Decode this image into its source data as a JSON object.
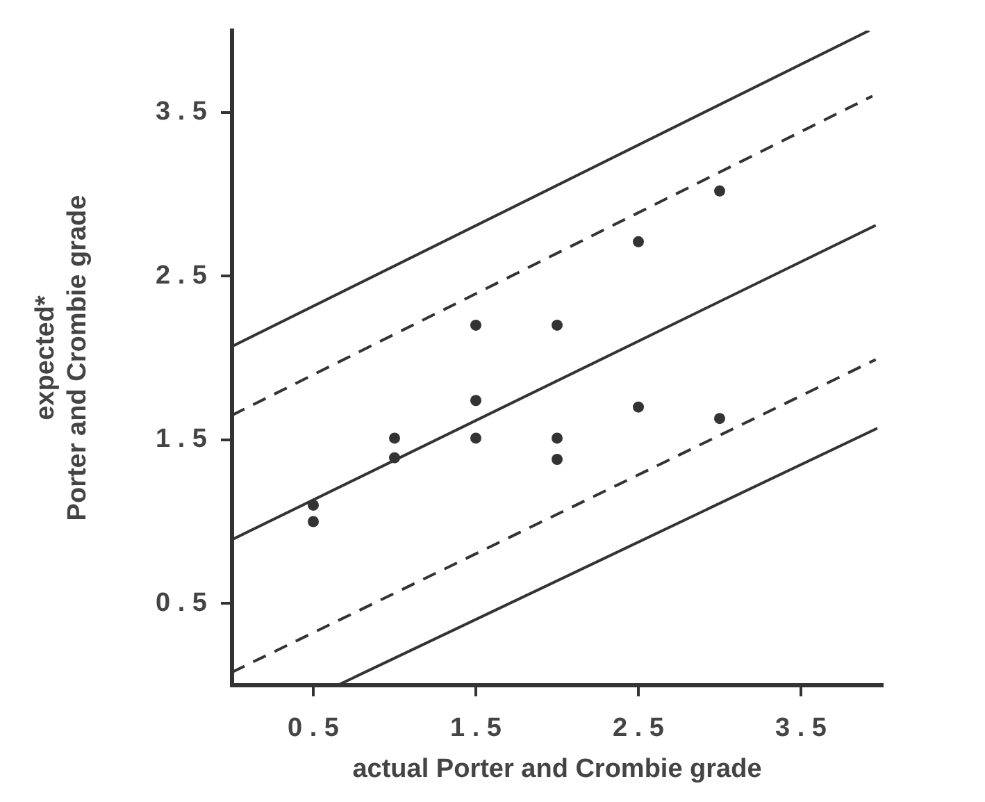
{
  "chart_data": {
    "type": "scatter",
    "xlabel": "actual Porter and Crombie grade",
    "ylabel": "expected*\nPorter and Crombie grade",
    "xlim": [
      0,
      4
    ],
    "xticks": [
      0.5,
      1.5,
      2.5,
      3.5
    ],
    "ylim": [
      0,
      4
    ],
    "yticks": [
      0.5,
      1.5,
      2.5,
      3.5
    ],
    "grid": false,
    "legend": false,
    "series": [
      {
        "marker": "circle",
        "color": "#333333",
        "x": [
          0.5,
          0.5,
          1,
          1,
          1.5,
          1.5,
          1.5,
          2,
          2,
          2,
          2.5,
          2.5,
          3,
          3
        ],
        "values": [
          1.1,
          1.0,
          1.51,
          1.39,
          2.2,
          1.74,
          1.51,
          2.2,
          1.51,
          1.38,
          2.71,
          1.7,
          3.02,
          1.63
        ]
      },
      {
        "type": "line",
        "marker": "none",
        "line_style": "solid",
        "color": "#333333",
        "x": [
          0,
          3.92
        ],
        "values": [
          2.07,
          4.0
        ]
      },
      {
        "type": "line",
        "marker": "none",
        "line_style": "dashed",
        "color": "#333333",
        "x": [
          0,
          3.94
        ],
        "values": [
          1.65,
          3.6
        ]
      },
      {
        "type": "line",
        "marker": "none",
        "line_style": "solid",
        "color": "#333333",
        "x": [
          0,
          3.96
        ],
        "values": [
          0.89,
          2.81
        ]
      },
      {
        "type": "line",
        "marker": "none",
        "line_style": "dashed",
        "color": "#333333",
        "x": [
          0,
          3.96
        ],
        "values": [
          0.08,
          1.99
        ]
      },
      {
        "type": "line",
        "marker": "none",
        "line_style": "solid",
        "color": "#333333",
        "x": [
          0.65,
          3.97
        ],
        "values": [
          0,
          1.57
        ]
      }
    ]
  }
}
